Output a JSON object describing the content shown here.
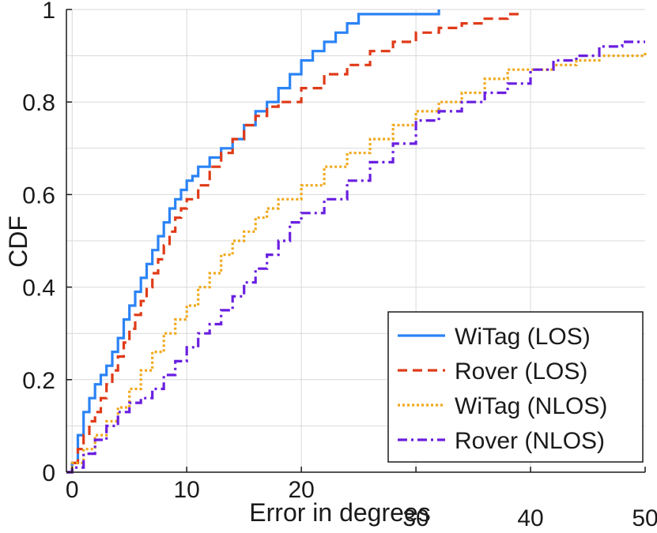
{
  "chart_data": {
    "type": "line",
    "title": "",
    "xlabel": "Error in degrees",
    "ylabel": "CDF",
    "xlim": [
      -0.5,
      50
    ],
    "ylim": [
      0,
      1
    ],
    "xticks": [
      0,
      10,
      20,
      30,
      40,
      50
    ],
    "xtick_labels": [
      "0",
      "10",
      "20",
      "30",
      "40",
      "50"
    ],
    "yticks": [
      0,
      0.2,
      0.4,
      0.6,
      0.8,
      1
    ],
    "ytick_labels": [
      "0",
      "0.2",
      "0.4",
      "0.6",
      "0.8",
      "1"
    ],
    "grid": true,
    "legend_position": "bottom-right",
    "series": [
      {
        "name": "WiTag (LOS)",
        "color": "#2b83f6",
        "style": "solid",
        "x": [
          -0.5,
          0,
          0.5,
          1,
          1.5,
          2,
          2.5,
          3,
          3.5,
          4,
          4.5,
          5,
          5.5,
          6,
          6.5,
          7,
          7.5,
          8,
          8.5,
          9,
          9.5,
          10,
          10.5,
          11,
          12,
          13,
          14,
          15,
          16,
          17,
          18,
          19,
          20,
          21,
          22,
          23,
          24,
          25,
          28,
          32
        ],
        "y": [
          0,
          0.02,
          0.08,
          0.13,
          0.16,
          0.19,
          0.21,
          0.23,
          0.26,
          0.29,
          0.33,
          0.36,
          0.39,
          0.42,
          0.45,
          0.48,
          0.51,
          0.54,
          0.57,
          0.59,
          0.61,
          0.63,
          0.64,
          0.66,
          0.68,
          0.7,
          0.72,
          0.75,
          0.78,
          0.8,
          0.83,
          0.86,
          0.89,
          0.91,
          0.93,
          0.95,
          0.97,
          0.99,
          0.99,
          1.0
        ]
      },
      {
        "name": "Rover (LOS)",
        "color": "#e03a17",
        "style": "dashed",
        "x": [
          -0.5,
          0,
          0.5,
          1,
          1.5,
          2,
          2.5,
          3,
          3.5,
          4,
          4.5,
          5,
          5.5,
          6,
          6.5,
          7,
          7.5,
          8,
          8.5,
          9,
          9.5,
          10,
          11,
          12,
          13,
          14,
          15,
          16,
          17,
          18,
          20,
          22,
          24,
          26,
          28,
          30,
          32,
          34,
          36,
          38,
          39
        ],
        "y": [
          0,
          0.02,
          0.05,
          0.08,
          0.11,
          0.13,
          0.16,
          0.19,
          0.22,
          0.25,
          0.28,
          0.31,
          0.34,
          0.37,
          0.4,
          0.43,
          0.46,
          0.49,
          0.52,
          0.55,
          0.57,
          0.59,
          0.62,
          0.66,
          0.69,
          0.72,
          0.75,
          0.77,
          0.79,
          0.8,
          0.83,
          0.86,
          0.88,
          0.91,
          0.93,
          0.95,
          0.96,
          0.97,
          0.98,
          0.99,
          1.0
        ]
      },
      {
        "name": "WiTag (NLOS)",
        "color": "#f0a81a",
        "style": "dotted",
        "x": [
          -0.5,
          0,
          1,
          2,
          3,
          4,
          5,
          6,
          7,
          8,
          9,
          10,
          11,
          12,
          13,
          14,
          15,
          16,
          17,
          18,
          20,
          22,
          24,
          26,
          28,
          30,
          32,
          34,
          36,
          38,
          40,
          42,
          44,
          46,
          48,
          50
        ],
        "y": [
          0,
          0.02,
          0.05,
          0.08,
          0.11,
          0.14,
          0.18,
          0.22,
          0.26,
          0.3,
          0.33,
          0.36,
          0.4,
          0.43,
          0.47,
          0.5,
          0.52,
          0.55,
          0.57,
          0.59,
          0.62,
          0.66,
          0.69,
          0.72,
          0.75,
          0.78,
          0.8,
          0.82,
          0.85,
          0.87,
          0.87,
          0.88,
          0.89,
          0.9,
          0.9,
          0.91
        ]
      },
      {
        "name": "Rover (NLOS)",
        "color": "#6a1fe0",
        "style": "dashdot",
        "x": [
          -0.5,
          0,
          1,
          2,
          3,
          4,
          5,
          6,
          7,
          8,
          9,
          10,
          11,
          12,
          13,
          14,
          15,
          16,
          17,
          18,
          19,
          20,
          22,
          24,
          26,
          28,
          30,
          32,
          34,
          36,
          38,
          40,
          42,
          44,
          46,
          48,
          50
        ],
        "y": [
          0,
          0.01,
          0.04,
          0.07,
          0.1,
          0.13,
          0.15,
          0.16,
          0.18,
          0.21,
          0.24,
          0.27,
          0.3,
          0.32,
          0.35,
          0.38,
          0.41,
          0.44,
          0.47,
          0.5,
          0.54,
          0.56,
          0.59,
          0.63,
          0.67,
          0.71,
          0.76,
          0.78,
          0.8,
          0.82,
          0.84,
          0.87,
          0.89,
          0.9,
          0.92,
          0.93,
          0.93
        ]
      }
    ]
  }
}
